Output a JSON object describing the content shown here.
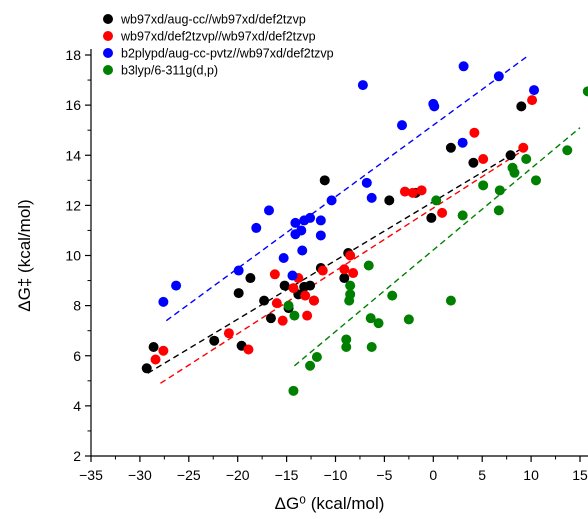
{
  "chart_data": {
    "type": "scatter",
    "xlabel": "ΔG⁰ (kcal/mol)",
    "ylabel": "ΔG‡ (kcal/mol)",
    "xlim": [
      -35,
      15
    ],
    "ylim": [
      2,
      18
    ],
    "xticks": [
      -35,
      -30,
      -25,
      -20,
      -15,
      -10,
      -5,
      0,
      5,
      10,
      15
    ],
    "yticks": [
      2,
      4,
      6,
      8,
      10,
      12,
      14,
      16,
      18
    ],
    "x_tick_labels": [
      "−35",
      "−30",
      "−25",
      "−20",
      "−15",
      "−10",
      "−5",
      "0",
      "5",
      "10",
      "15"
    ],
    "y_tick_labels": [
      "2",
      "4",
      "6",
      "8",
      "10",
      "12",
      "14",
      "16",
      "18"
    ],
    "grid": false,
    "legend_position": "top-left",
    "series": [
      {
        "name": "wb97xd/aug-cc//wb97xd/def2tzvp",
        "color": "#000000",
        "points": [
          [
            -29.3,
            5.5
          ],
          [
            -28.6,
            6.35
          ],
          [
            -22.4,
            6.6
          ],
          [
            -19.6,
            6.4
          ],
          [
            -18.7,
            9.1
          ],
          [
            -19.9,
            8.5
          ],
          [
            -17.3,
            8.2
          ],
          [
            -16.6,
            7.5
          ],
          [
            -15.2,
            8.8
          ],
          [
            -14.8,
            7.9
          ],
          [
            -13.8,
            8.45
          ],
          [
            -13.2,
            8.75
          ],
          [
            -12.6,
            8.8
          ],
          [
            -12.2,
            8.2
          ],
          [
            -11.5,
            9.5
          ],
          [
            -11.1,
            13.0
          ],
          [
            -9.1,
            9.1
          ],
          [
            -8.7,
            10.1
          ],
          [
            -4.5,
            12.2
          ],
          [
            -1.8,
            12.5
          ],
          [
            -0.2,
            11.5
          ],
          [
            1.8,
            14.3
          ],
          [
            4.1,
            13.7
          ],
          [
            7.9,
            14.0
          ],
          [
            9.0,
            15.95
          ]
        ],
        "fit": {
          "x": [
            -29.2,
            9.6
          ],
          "y": [
            5.3,
            14.4
          ]
        }
      },
      {
        "name": "wb97xd/def2tzvp//wb97xd/def2tzvp",
        "color": "#ff0000",
        "points": [
          [
            -28.4,
            5.85
          ],
          [
            -27.6,
            6.2
          ],
          [
            -20.9,
            6.9
          ],
          [
            -18.9,
            6.25
          ],
          [
            -16.2,
            9.25
          ],
          [
            -16.0,
            8.1
          ],
          [
            -15.4,
            7.4
          ],
          [
            -14.3,
            8.7
          ],
          [
            -13.8,
            9.1
          ],
          [
            -13.1,
            8.4
          ],
          [
            -12.9,
            7.6
          ],
          [
            -12.2,
            8.2
          ],
          [
            -11.3,
            9.4
          ],
          [
            -9.1,
            9.45
          ],
          [
            -8.5,
            10.0
          ],
          [
            -8.2,
            9.3
          ],
          [
            -2.9,
            12.55
          ],
          [
            -2.1,
            12.5
          ],
          [
            -1.2,
            12.6
          ],
          [
            0.9,
            11.7
          ],
          [
            4.2,
            14.9
          ],
          [
            5.1,
            13.85
          ],
          [
            9.2,
            14.3
          ],
          [
            10.1,
            16.2
          ]
        ],
        "fit": {
          "x": [
            -27.9,
            9.6
          ],
          "y": [
            4.9,
            14.3
          ]
        }
      },
      {
        "name": "b2plypd/aug-cc-pvtz//wb97xd/def2tzvp",
        "color": "#0000ff",
        "points": [
          [
            -27.6,
            8.15
          ],
          [
            -26.3,
            8.8
          ],
          [
            -19.9,
            9.4
          ],
          [
            -18.1,
            11.1
          ],
          [
            -16.8,
            11.8
          ],
          [
            -15.3,
            9.9
          ],
          [
            -14.4,
            9.2
          ],
          [
            -14.1,
            10.85
          ],
          [
            -14.1,
            11.3
          ],
          [
            -13.5,
            11.0
          ],
          [
            -13.4,
            10.2
          ],
          [
            -13.2,
            11.4
          ],
          [
            -12.6,
            11.5
          ],
          [
            -11.5,
            11.4
          ],
          [
            -11.5,
            10.8
          ],
          [
            -10.4,
            12.2
          ],
          [
            -7.2,
            16.8
          ],
          [
            -6.8,
            12.9
          ],
          [
            -6.3,
            12.3
          ],
          [
            -3.2,
            15.2
          ],
          [
            0.0,
            16.05
          ],
          [
            0.1,
            15.95
          ],
          [
            3.0,
            14.5
          ],
          [
            3.1,
            17.55
          ],
          [
            6.7,
            17.15
          ],
          [
            10.3,
            16.6
          ]
        ],
        "fit": {
          "x": [
            -27.3,
            9.8
          ],
          "y": [
            7.4,
            18.0
          ]
        }
      },
      {
        "name": "b3lyp/6-311g(d,p)",
        "color": "#008000",
        "points": [
          [
            -14.8,
            8.0
          ],
          [
            -14.2,
            7.6
          ],
          [
            -14.3,
            4.6
          ],
          [
            -12.6,
            5.6
          ],
          [
            -11.9,
            5.95
          ],
          [
            -8.9,
            6.35
          ],
          [
            -8.9,
            6.65
          ],
          [
            -8.6,
            8.2
          ],
          [
            -8.5,
            8.45
          ],
          [
            -8.5,
            8.8
          ],
          [
            -6.6,
            9.6
          ],
          [
            -6.4,
            7.5
          ],
          [
            -6.3,
            6.35
          ],
          [
            -5.6,
            7.3
          ],
          [
            -4.2,
            8.4
          ],
          [
            -2.5,
            7.45
          ],
          [
            0.3,
            12.2
          ],
          [
            1.8,
            8.2
          ],
          [
            3.0,
            11.6
          ],
          [
            5.1,
            12.8
          ],
          [
            6.7,
            11.8
          ],
          [
            6.8,
            12.6
          ],
          [
            8.1,
            13.5
          ],
          [
            8.3,
            13.3
          ],
          [
            9.5,
            13.85
          ],
          [
            10.5,
            13.0
          ],
          [
            13.7,
            14.2
          ],
          [
            15.8,
            16.55
          ]
        ],
        "fit": {
          "x": [
            -14.2,
            15.0
          ],
          "y": [
            5.6,
            15.1
          ]
        }
      }
    ]
  }
}
